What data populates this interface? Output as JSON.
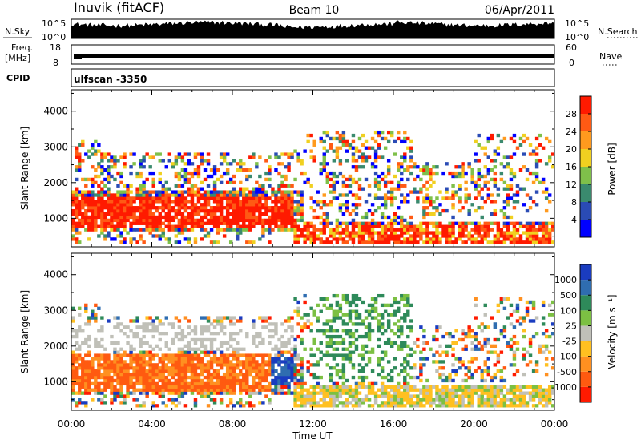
{
  "header": {
    "station": "Inuvik (fitACF)",
    "beam": "Beam 10",
    "date": "06/Apr/2011"
  },
  "ts_labels": {
    "nsky": "N.Sky",
    "nsearch": "N.Search",
    "freq": "Freq.",
    "mhz": "[MHz]",
    "cpid": "CPID",
    "nave": "Nave",
    "pow10_5": "10^5",
    "pow10_0": "10^0",
    "freq_hi": "18",
    "freq_lo": "8",
    "nave_hi": "60",
    "nave_lo": "0",
    "cpid_value": "ulfscan -3350"
  },
  "chart_data": [
    {
      "type": "heatmap",
      "name": "power-panel",
      "ylabel": "Slant Range [km]",
      "xlabel": "Time UT",
      "xlim": [
        "00:00",
        "24:00"
      ],
      "ylim": [
        200,
        4600
      ],
      "x_ticks": [
        "00:00",
        "04:00",
        "08:00",
        "12:00",
        "16:00",
        "20:00",
        "00:00"
      ],
      "y_ticks": [
        "1000",
        "2000",
        "3000",
        "4000"
      ],
      "colorbar": {
        "label": "Power [dB]",
        "ticks": [
          "4",
          "8",
          "12",
          "16",
          "20",
          "24",
          "28"
        ],
        "colors": [
          "#0000ff",
          "#2a4bb5",
          "#3a8a6e",
          "#7fc04a",
          "#f0d020",
          "#ff9a1e",
          "#ff5a14",
          "#ff1a00"
        ]
      }
    },
    {
      "type": "heatmap",
      "name": "velocity-panel",
      "ylabel": "Slant Range [km]",
      "xlabel": "Time UT",
      "xlim": [
        "00:00",
        "24:00"
      ],
      "ylim": [
        200,
        4600
      ],
      "x_ticks": [
        "00:00",
        "04:00",
        "08:00",
        "12:00",
        "16:00",
        "20:00",
        "00:00"
      ],
      "y_ticks": [
        "1000",
        "2000",
        "3000",
        "4000"
      ],
      "colorbar": {
        "label": "Velocity [m s⁻¹]",
        "ticks": [
          "1000",
          "500",
          "100",
          "25",
          "-25",
          "-100",
          "-500",
          "-1000"
        ],
        "colors": [
          "#1a3cc0",
          "#2f6db0",
          "#2e8a5a",
          "#7cc043",
          "#c0c0b8",
          "#ffc020",
          "#ff9020",
          "#ff5a10",
          "#ff1a00"
        ]
      }
    }
  ],
  "x_axis": {
    "label": "Time UT"
  }
}
